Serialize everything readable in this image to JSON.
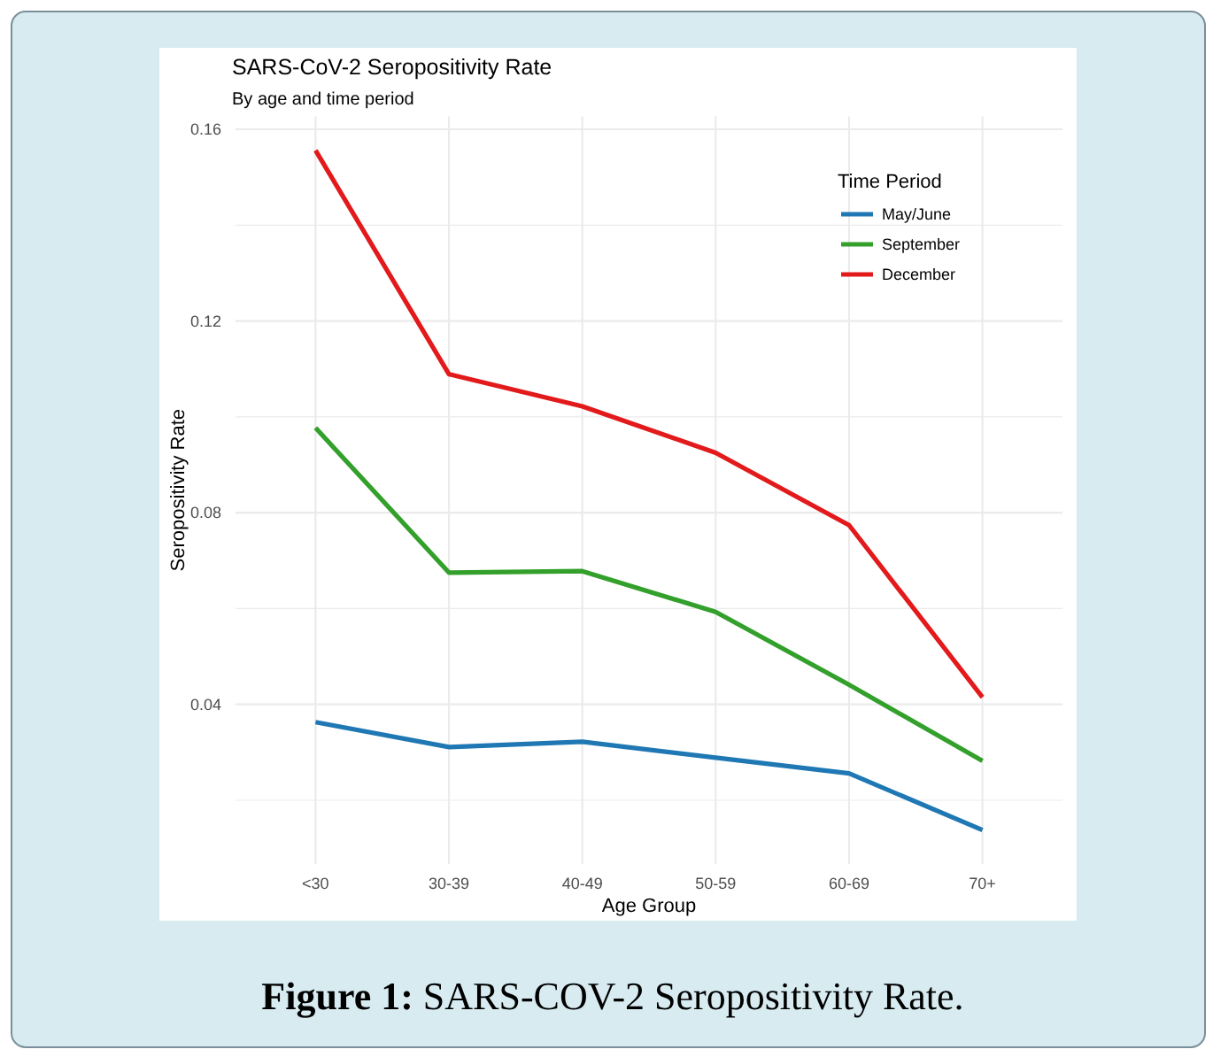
{
  "chart_data": {
    "type": "line",
    "title": "SARS-CoV-2 Seropositivity Rate",
    "subtitle": "By age and time period",
    "xlabel": "Age Group",
    "ylabel": "Seropositivity Rate",
    "legend_title": "Time Period",
    "annotations": [
      "Figure 1: SARS-COV-2 Seropositivity Rate."
    ],
    "categories": [
      "<30",
      "30-39",
      "40-49",
      "50-59",
      "60-69",
      "70+"
    ],
    "series": [
      {
        "name": "May/June",
        "color": "#1f78b4",
        "values": [
          0.0363,
          0.0311,
          0.0322,
          0.0289,
          0.0256,
          0.0138
        ]
      },
      {
        "name": "September",
        "color": "#33a02c",
        "values": [
          0.0977,
          0.0675,
          0.0678,
          0.0593,
          0.0441,
          0.0282
        ]
      },
      {
        "name": "December",
        "color": "#e31a1c",
        "values": [
          0.1556,
          0.1089,
          0.1022,
          0.0925,
          0.0774,
          0.0415
        ]
      }
    ],
    "ylim": [
      0.0067,
      0.1627
    ],
    "yticks": [
      {
        "value": 0.02,
        "label": null
      },
      0.04,
      {
        "value": 0.06,
        "label": null
      },
      0.08,
      {
        "value": 0.1,
        "label": null
      },
      0.12,
      {
        "value": 0.14,
        "label": null
      },
      0.16
    ],
    "grid": true,
    "legend": "top right",
    "marker": "none",
    "line_style": "solid"
  }
}
